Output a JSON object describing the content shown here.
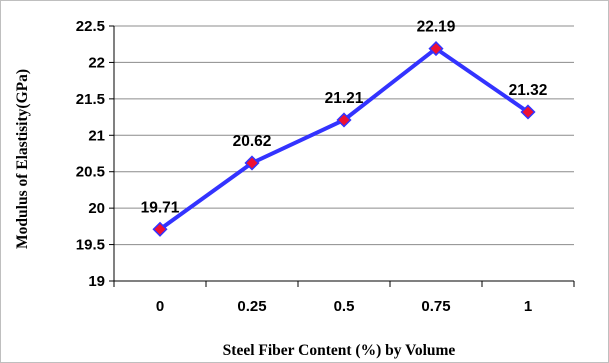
{
  "chart_data": {
    "type": "line",
    "title": "",
    "xlabel": "Steel Fiber Content (%) by Volume",
    "ylabel": "Modulus of Elastisity(GPa)",
    "categories": [
      "0",
      "0.25",
      "0.5",
      "0.75",
      "1"
    ],
    "series": [
      {
        "values": [
          19.71,
          20.62,
          21.21,
          22.19,
          21.32
        ]
      }
    ],
    "data_labels": [
      "19.71",
      "20.62",
      "21.21",
      "22.19",
      "21.32"
    ],
    "y_ticks": [
      "19",
      "19.5",
      "20",
      "20.5",
      "21",
      "21.5",
      "22",
      "22.5"
    ],
    "ylim": [
      19,
      22.5
    ],
    "grid": true,
    "legend": "none",
    "colors": {
      "line": "#3333ff",
      "marker": "#ee1133",
      "grid": "#8c8c8c"
    }
  }
}
